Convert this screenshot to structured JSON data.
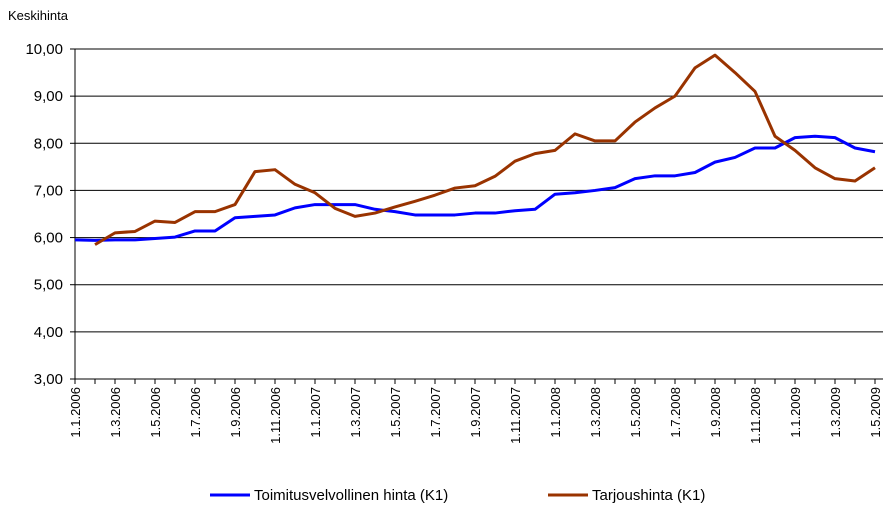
{
  "chart_data": {
    "type": "line",
    "ylabel": "Keskihinta",
    "categories": [
      "1.1.2006",
      null,
      "1.3.2006",
      null,
      "1.5.2006",
      null,
      "1.7.2006",
      null,
      "1.9.2006",
      null,
      "1.11.2006",
      null,
      "1.1.2007",
      null,
      "1.3.2007",
      null,
      "1.5.2007",
      null,
      "1.7.2007",
      null,
      "1.9.2007",
      null,
      "1.11.2007",
      null,
      "1.1.2008",
      null,
      "1.3.2008",
      null,
      "1.5.2008",
      null,
      "1.7.2008",
      null,
      "1.9.2008",
      null,
      "1.11.2008",
      null,
      "1.1.2009",
      null,
      "1.3.2009",
      null,
      "1.5.2009"
    ],
    "series": [
      {
        "name": "Toimitusvelvollinen hinta (K1)",
        "color": "#0000ff",
        "values": [
          5.95,
          5.94,
          5.95,
          5.95,
          5.98,
          6.01,
          6.14,
          6.14,
          6.42,
          6.45,
          6.48,
          6.63,
          6.7,
          6.7,
          6.7,
          6.6,
          6.55,
          6.48,
          6.48,
          6.48,
          6.52,
          6.52,
          6.57,
          6.6,
          6.92,
          6.95,
          7.0,
          7.06,
          7.25,
          7.31,
          7.31,
          7.38,
          7.6,
          7.7,
          7.9,
          7.9,
          8.12,
          8.15,
          8.12,
          7.9,
          7.82
        ]
      },
      {
        "name": "Tarjoushinta (K1)",
        "color": "#993300",
        "values": [
          null,
          5.85,
          6.1,
          6.13,
          6.35,
          6.32,
          6.55,
          6.55,
          6.7,
          7.4,
          7.44,
          7.13,
          6.95,
          6.62,
          6.45,
          6.52,
          6.65,
          6.77,
          6.9,
          7.05,
          7.1,
          7.3,
          7.62,
          7.78,
          7.85,
          8.2,
          8.05,
          8.05,
          8.45,
          8.75,
          9.0,
          9.6,
          9.87,
          9.5,
          9.1,
          8.15,
          7.85,
          7.48,
          7.25,
          7.2,
          7.48
        ]
      }
    ],
    "ylim": [
      3,
      10
    ],
    "yticks": [
      {
        "value": 3,
        "label": "3,00"
      },
      {
        "value": 4,
        "label": "4,00"
      },
      {
        "value": 5,
        "label": "5,00"
      },
      {
        "value": 6,
        "label": "6,00"
      },
      {
        "value": 7,
        "label": "7,00"
      },
      {
        "value": 8,
        "label": "8,00"
      },
      {
        "value": 9,
        "label": "9,00"
      },
      {
        "value": 10,
        "label": "10,00"
      }
    ],
    "grid": true,
    "legend": "bottom"
  }
}
